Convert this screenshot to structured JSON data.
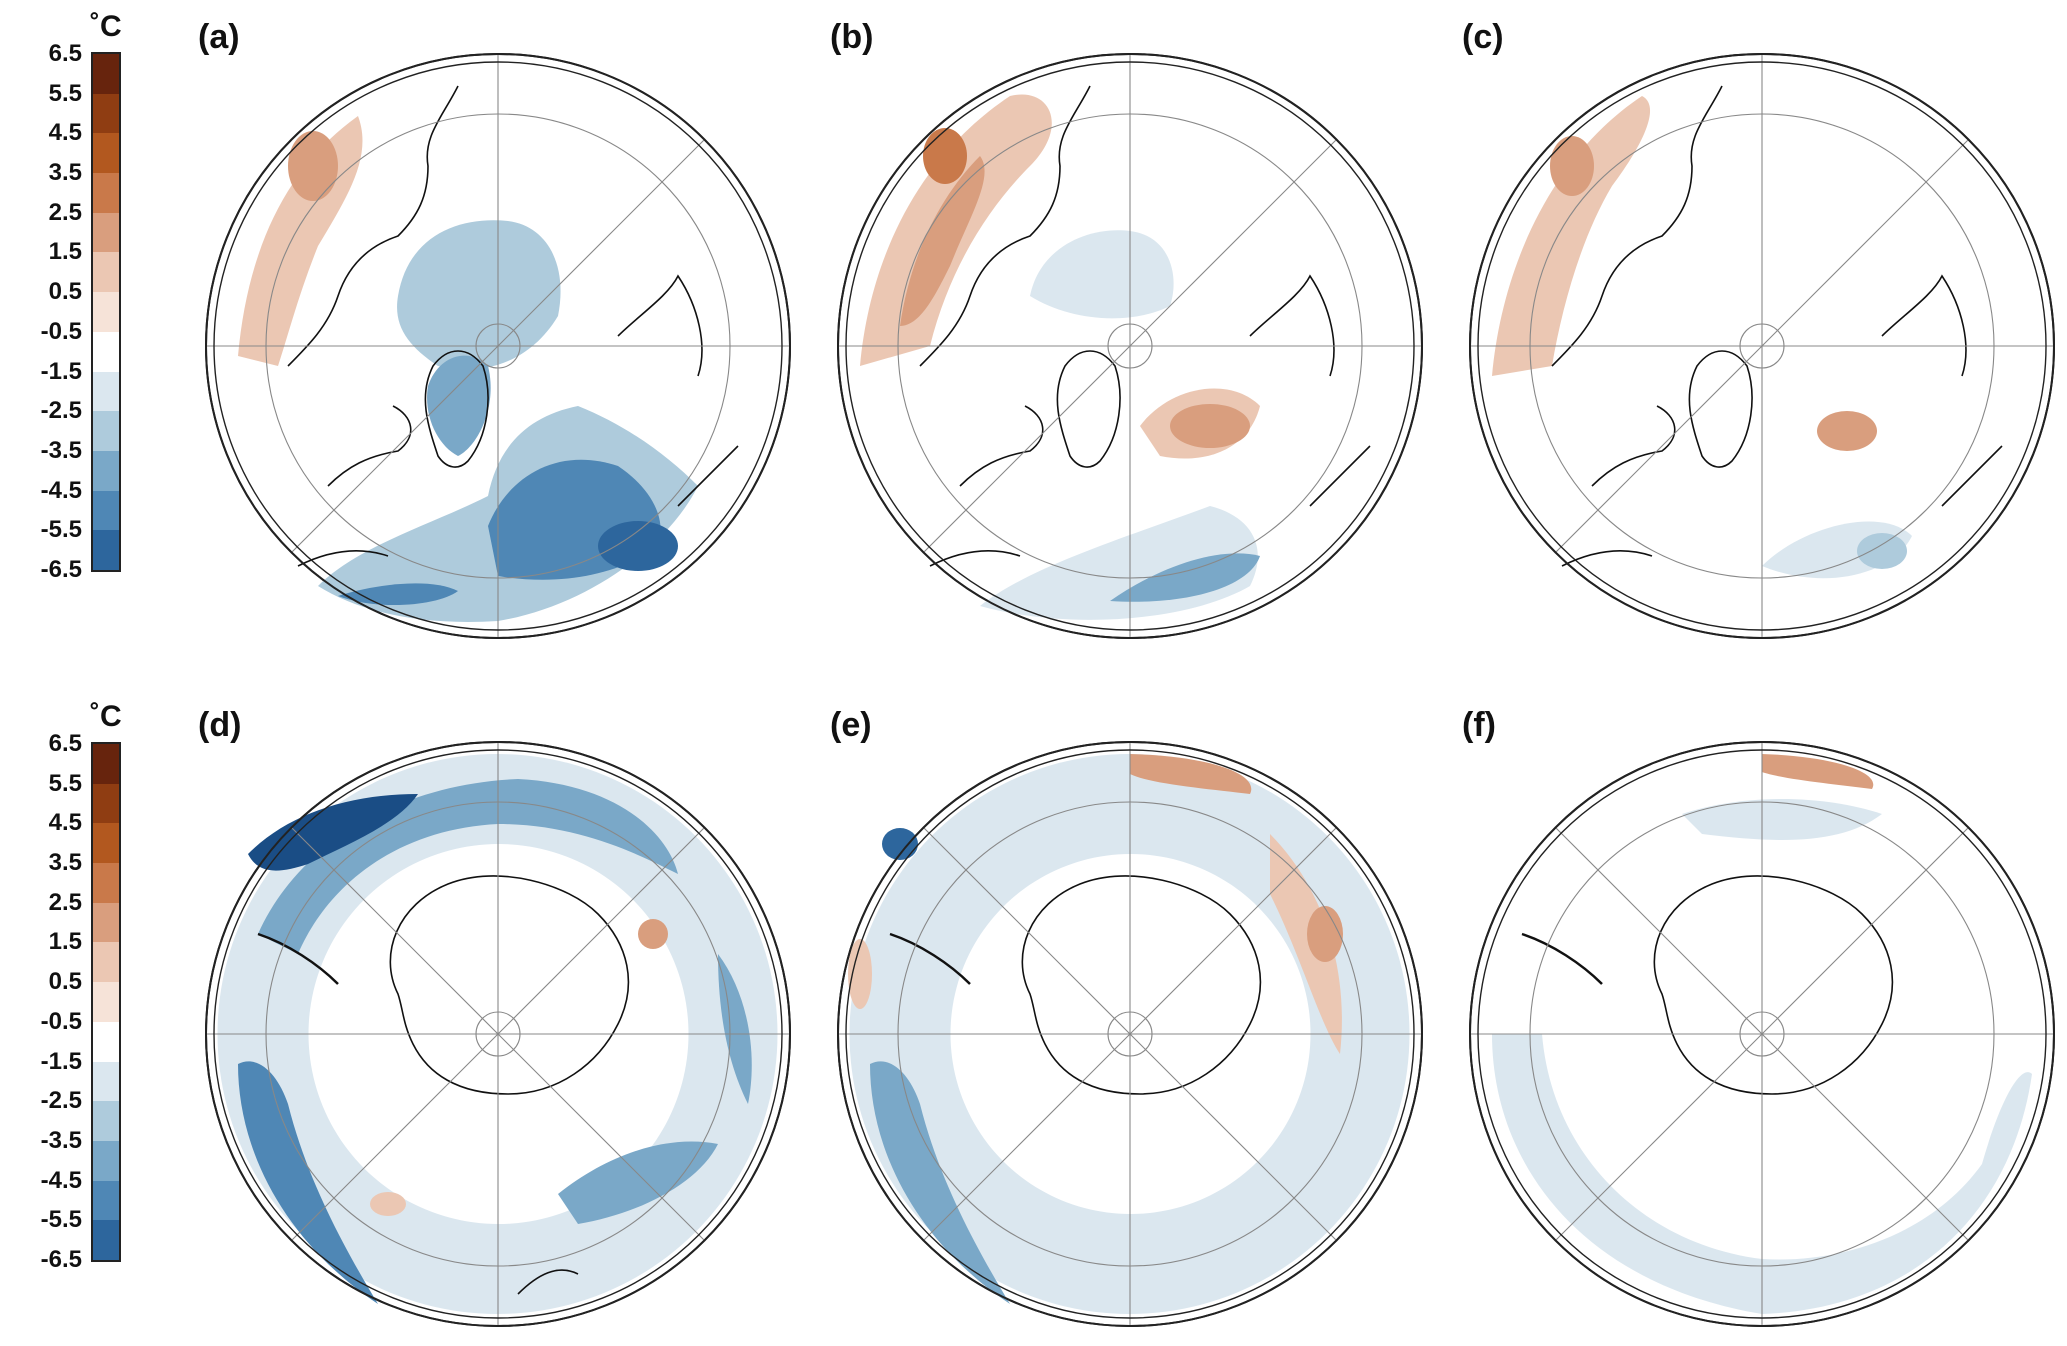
{
  "colorbar": {
    "unit": "˚C",
    "ticks": [
      "6.5",
      "5.5",
      "4.5",
      "3.5",
      "2.5",
      "1.5",
      "0.5",
      "-0.5",
      "-1.5",
      "-2.5",
      "-3.5",
      "-4.5",
      "-5.5",
      "-6.5"
    ],
    "colors": [
      "#67240d",
      "#8f3d12",
      "#b2581f",
      "#c9794a",
      "#d99e7e",
      "#ebc7b3",
      "#f6e3d8",
      "#ffffff",
      "#dbe7ef",
      "#aecbdc",
      "#7aa8c8",
      "#4f87b5",
      "#2d669d",
      "#1a4d85",
      "#0b2f66"
    ]
  },
  "panels": [
    {
      "id": "a",
      "label": "(a)",
      "hemisphere": "north"
    },
    {
      "id": "b",
      "label": "(b)",
      "hemisphere": "north"
    },
    {
      "id": "c",
      "label": "(c)",
      "hemisphere": "north"
    },
    {
      "id": "d",
      "label": "(d)",
      "hemisphere": "south"
    },
    {
      "id": "e",
      "label": "(e)",
      "hemisphere": "south"
    },
    {
      "id": "f",
      "label": "(f)",
      "hemisphere": "south"
    }
  ]
}
